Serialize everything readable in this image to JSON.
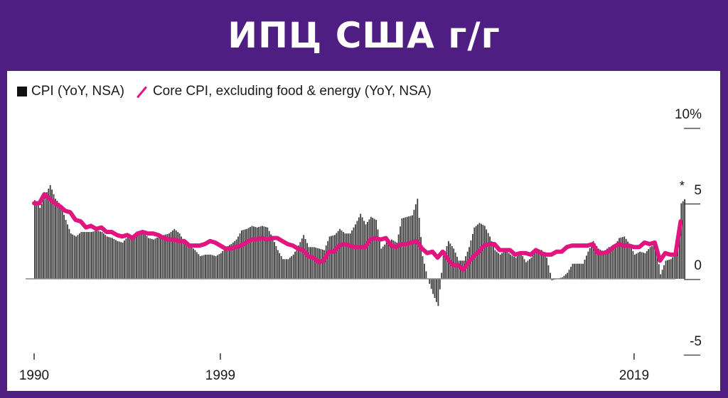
{
  "header": {
    "title": "ИПЦ США г/г"
  },
  "legend": {
    "cpi_label": "CPI (YoY, NSA)",
    "core_label": "Core CPI, excluding food & energy (YoY, NSA)"
  },
  "colors": {
    "background": "#4f1e82",
    "panel": "#ffffff",
    "cpi_bars": "#3c3c3c",
    "core_line": "#e0157f"
  },
  "y_axis": {
    "ticks": [
      {
        "value": 10,
        "label": "10%"
      },
      {
        "value": 5,
        "label": "5"
      },
      {
        "value": 0,
        "label": "0"
      },
      {
        "value": -5,
        "label": "-5"
      }
    ]
  },
  "x_axis": {
    "ticks": [
      {
        "year": 1990,
        "label": "1990"
      },
      {
        "year": 1999,
        "label": "1999"
      },
      {
        "year": 2019,
        "label": "2019"
      }
    ]
  },
  "annotation": {
    "marker": "*"
  },
  "chart_data": {
    "type": "bar+line",
    "title": "ИПЦ США г/г",
    "xlabel": "",
    "ylabel": "%",
    "ylim": [
      -5,
      10
    ],
    "xlim": [
      1990,
      2021.5
    ],
    "grid": false,
    "legend_position": "top-left",
    "legend": [
      "CPI (YoY, NSA)",
      "Core CPI, excluding food & energy (YoY, NSA)"
    ],
    "annotations": [
      "* marker above latest CPI bar (~5.4%, mid-2021)"
    ],
    "frequency": "quarterly (approx. from monthly series)",
    "x": [
      1990.0,
      1990.25,
      1990.5,
      1990.75,
      1991.0,
      1991.25,
      1991.5,
      1991.75,
      1992.0,
      1992.25,
      1992.5,
      1992.75,
      1993.0,
      1993.25,
      1993.5,
      1993.75,
      1994.0,
      1994.25,
      1994.5,
      1994.75,
      1995.0,
      1995.25,
      1995.5,
      1995.75,
      1996.0,
      1996.25,
      1996.5,
      1996.75,
      1997.0,
      1997.25,
      1997.5,
      1997.75,
      1998.0,
      1998.25,
      1998.5,
      1998.75,
      1999.0,
      1999.25,
      1999.5,
      1999.75,
      2000.0,
      2000.25,
      2000.5,
      2000.75,
      2001.0,
      2001.25,
      2001.5,
      2001.75,
      2002.0,
      2002.25,
      2002.5,
      2002.75,
      2003.0,
      2003.25,
      2003.5,
      2003.75,
      2004.0,
      2004.25,
      2004.5,
      2004.75,
      2005.0,
      2005.25,
      2005.5,
      2005.75,
      2006.0,
      2006.25,
      2006.5,
      2006.75,
      2007.0,
      2007.25,
      2007.5,
      2007.75,
      2008.0,
      2008.25,
      2008.5,
      2008.75,
      2009.0,
      2009.25,
      2009.5,
      2009.75,
      2010.0,
      2010.25,
      2010.5,
      2010.75,
      2011.0,
      2011.25,
      2011.5,
      2011.75,
      2012.0,
      2012.25,
      2012.5,
      2012.75,
      2013.0,
      2013.25,
      2013.5,
      2013.75,
      2014.0,
      2014.25,
      2014.5,
      2014.75,
      2015.0,
      2015.25,
      2015.5,
      2015.75,
      2016.0,
      2016.25,
      2016.5,
      2016.75,
      2017.0,
      2017.25,
      2017.5,
      2017.75,
      2018.0,
      2018.25,
      2018.5,
      2018.75,
      2019.0,
      2019.25,
      2019.5,
      2019.75,
      2020.0,
      2020.25,
      2020.5,
      2020.75,
      2021.0,
      2021.25
    ],
    "series": [
      {
        "name": "CPI (YoY, NSA)",
        "kind": "bar",
        "values": [
          5.2,
          4.7,
          5.5,
          6.2,
          5.3,
          4.9,
          3.9,
          3.0,
          2.8,
          3.1,
          3.1,
          3.1,
          3.2,
          3.1,
          2.8,
          2.7,
          2.5,
          2.4,
          2.8,
          2.7,
          2.9,
          3.1,
          2.7,
          2.6,
          2.8,
          2.9,
          3.0,
          3.3,
          3.0,
          2.4,
          2.2,
          1.9,
          1.5,
          1.6,
          1.6,
          1.5,
          1.7,
          2.1,
          2.3,
          2.6,
          3.2,
          3.3,
          3.5,
          3.4,
          3.5,
          3.4,
          2.7,
          1.9,
          1.3,
          1.3,
          1.6,
          2.2,
          2.9,
          2.1,
          2.1,
          2.0,
          1.9,
          2.8,
          2.9,
          3.3,
          3.0,
          3.0,
          3.6,
          4.3,
          3.6,
          4.1,
          3.9,
          2.0,
          2.4,
          2.6,
          2.4,
          4.0,
          4.1,
          4.2,
          5.3,
          1.5,
          0.0,
          -1.0,
          -1.8,
          1.5,
          2.5,
          2.0,
          1.2,
          1.2,
          2.1,
          3.4,
          3.7,
          3.5,
          2.8,
          1.9,
          1.6,
          1.9,
          1.6,
          1.4,
          1.7,
          1.1,
          1.4,
          2.0,
          1.9,
          1.4,
          -0.1,
          0.0,
          0.1,
          0.4,
          1.0,
          1.0,
          1.0,
          1.8,
          2.5,
          2.0,
          1.8,
          2.1,
          2.1,
          2.7,
          2.8,
          2.3,
          1.6,
          1.8,
          1.7,
          2.1,
          2.3,
          0.3,
          1.2,
          1.3,
          1.7,
          5.0,
          5.4
        ]
      },
      {
        "name": "Core CPI, excluding food & energy (YoY, NSA)",
        "kind": "line",
        "values": [
          5.0,
          5.0,
          5.6,
          5.3,
          5.0,
          4.8,
          4.5,
          4.4,
          3.9,
          3.8,
          3.4,
          3.5,
          3.3,
          3.4,
          3.1,
          3.1,
          2.9,
          2.8,
          2.9,
          2.7,
          3.0,
          3.1,
          3.0,
          3.0,
          2.9,
          2.7,
          2.6,
          2.6,
          2.5,
          2.5,
          2.2,
          2.2,
          2.2,
          2.3,
          2.5,
          2.4,
          2.2,
          2.0,
          2.0,
          2.1,
          2.2,
          2.4,
          2.6,
          2.6,
          2.7,
          2.6,
          2.7,
          2.7,
          2.5,
          2.3,
          2.2,
          2.0,
          1.9,
          1.5,
          1.4,
          1.1,
          1.2,
          1.8,
          1.8,
          2.2,
          2.3,
          2.2,
          2.1,
          2.1,
          2.1,
          2.6,
          2.7,
          2.6,
          2.7,
          2.2,
          2.1,
          2.3,
          2.3,
          2.4,
          2.5,
          2.0,
          1.7,
          1.8,
          1.4,
          1.8,
          1.3,
          0.9,
          0.9,
          0.6,
          1.1,
          1.5,
          1.8,
          2.2,
          2.3,
          2.3,
          1.9,
          1.9,
          1.9,
          1.6,
          1.7,
          1.7,
          1.6,
          1.9,
          1.7,
          1.6,
          1.6,
          1.8,
          1.8,
          2.1,
          2.2,
          2.2,
          2.2,
          2.2,
          2.3,
          1.7,
          1.7,
          1.8,
          2.1,
          2.3,
          2.2,
          2.2,
          2.1,
          2.1,
          2.4,
          2.3,
          2.4,
          1.2,
          1.7,
          1.6,
          1.6,
          3.8,
          4.5
        ]
      }
    ]
  }
}
